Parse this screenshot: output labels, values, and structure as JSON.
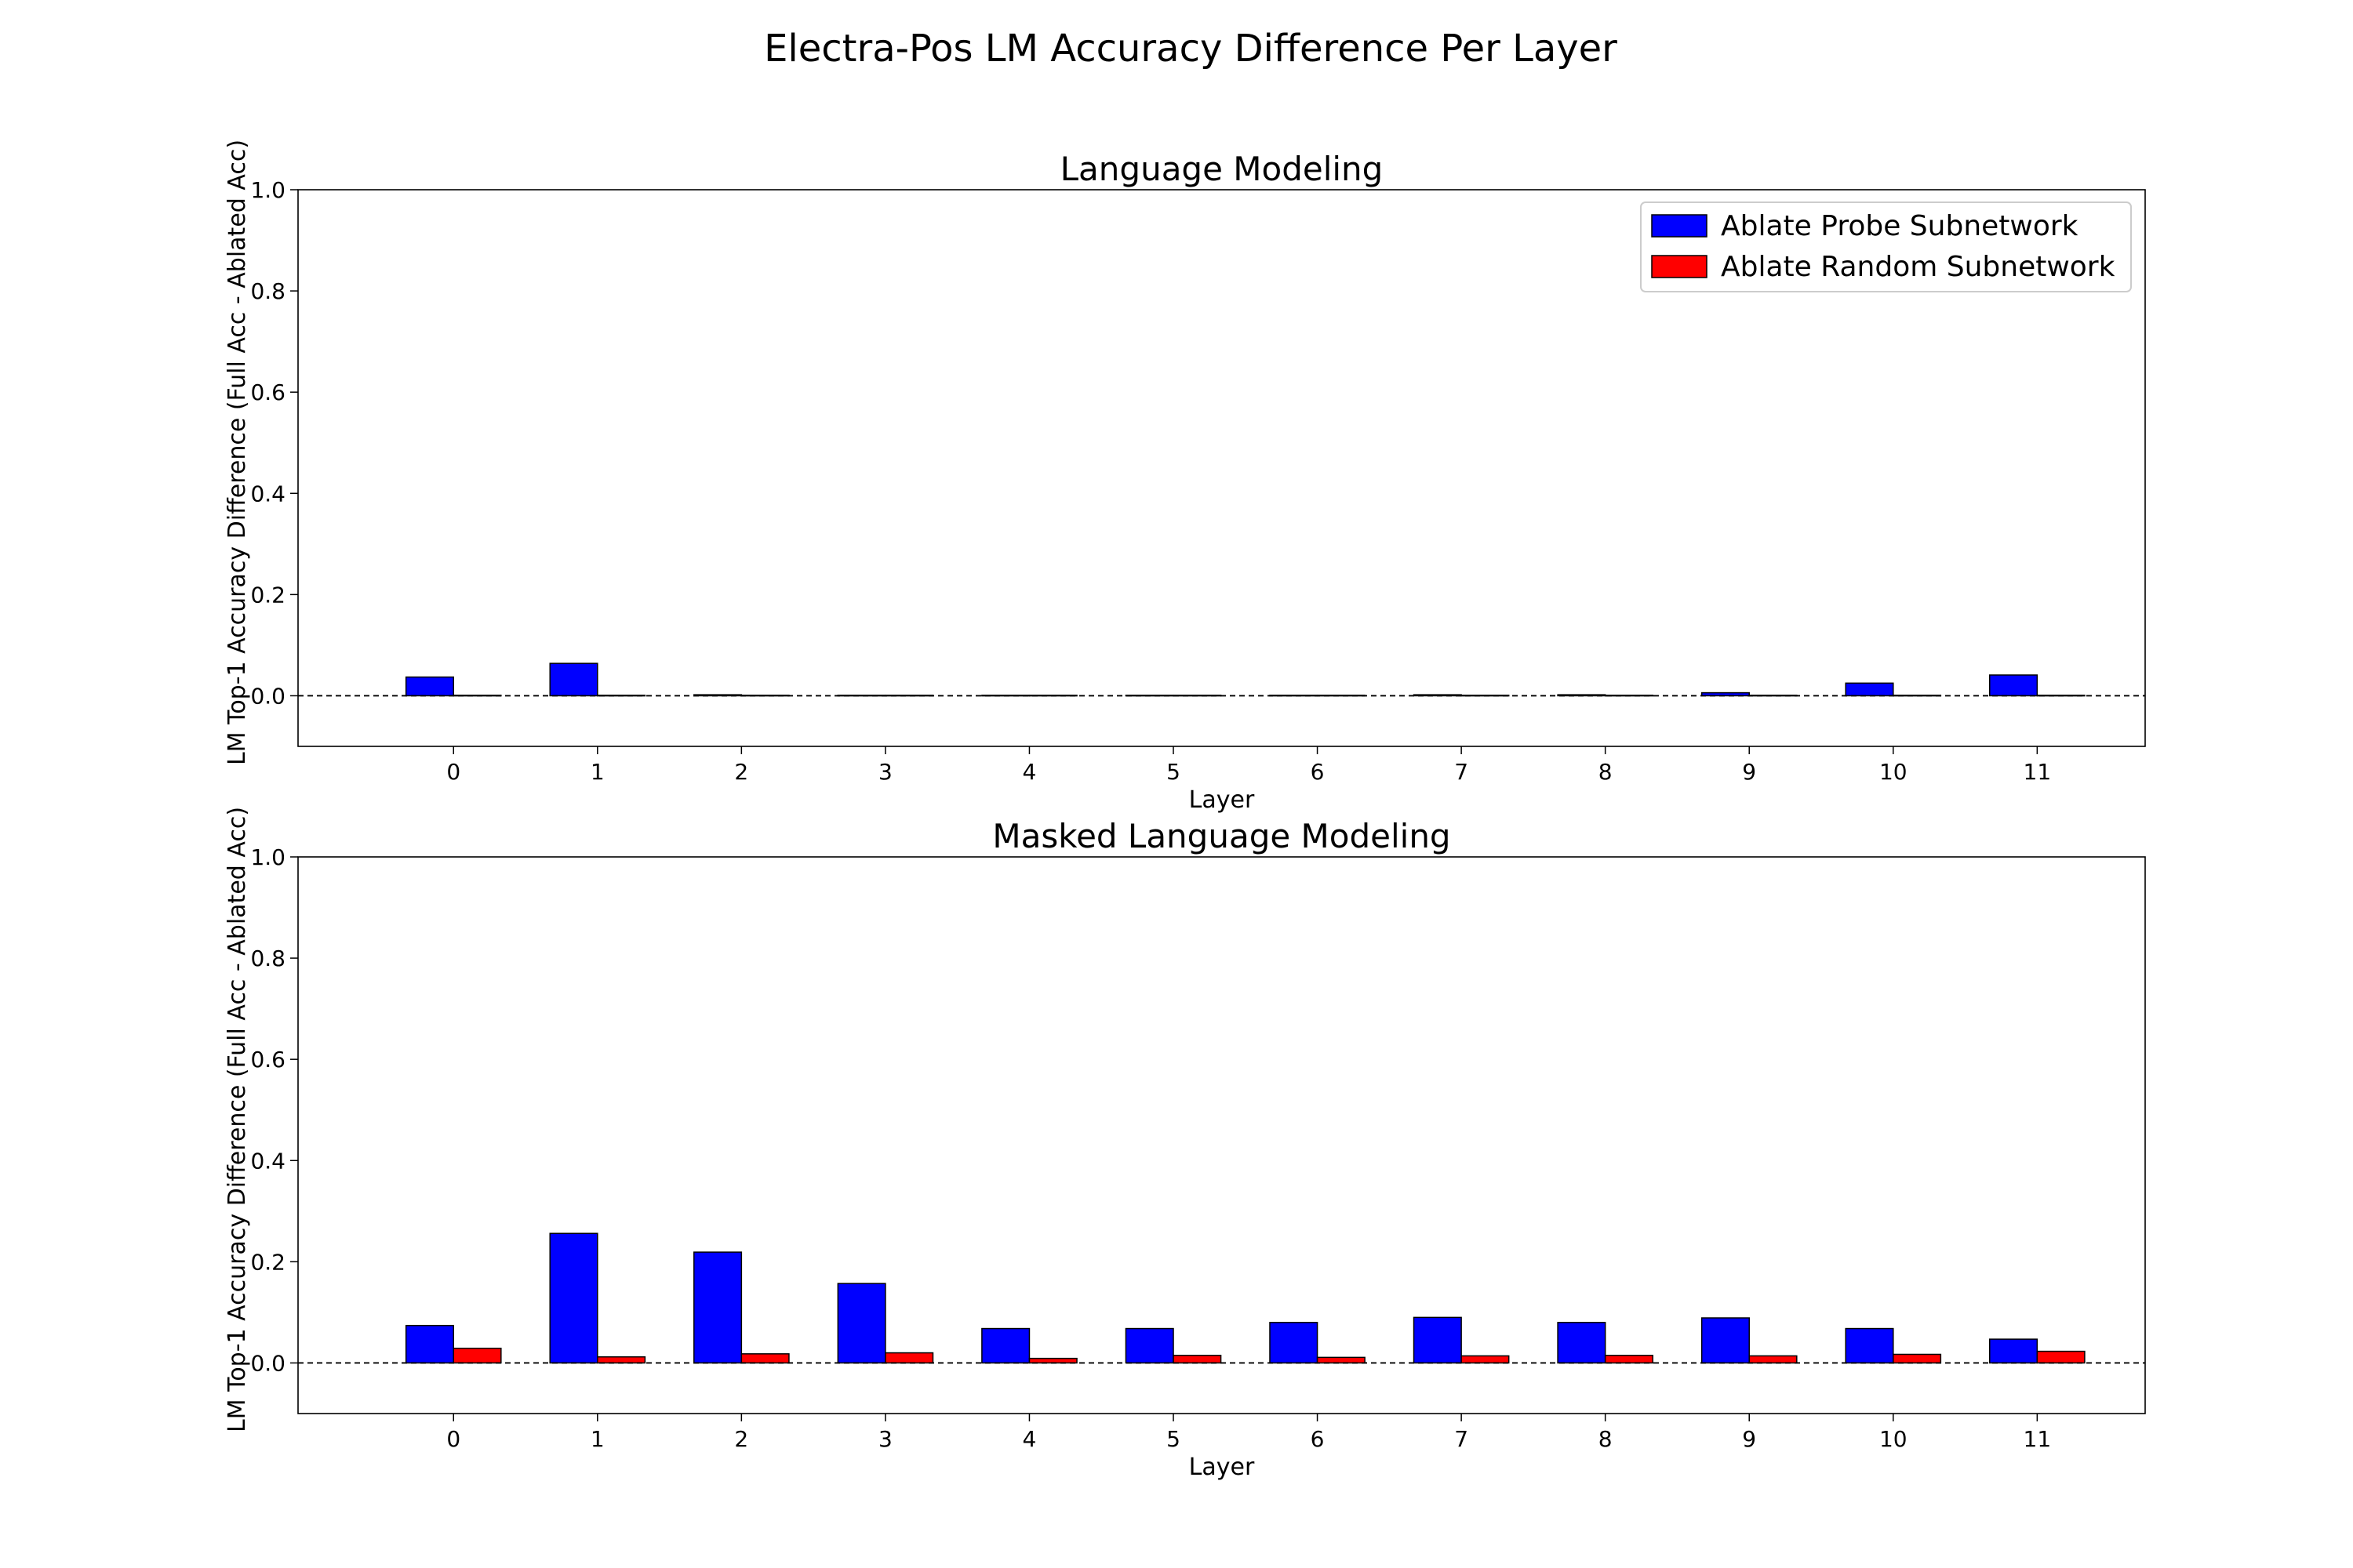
{
  "figure": {
    "suptitle": "Electra-Pos LM Accuracy Difference Per Layer"
  },
  "chart_data": [
    {
      "type": "bar",
      "title": "Language Modeling",
      "xlabel": "Layer",
      "ylabel": "LM Top-1 Accuracy Difference (Full Acc - Ablated Acc)",
      "ylim": [
        -0.1,
        1.0
      ],
      "yticks": [
        "0.0",
        "0.2",
        "0.4",
        "0.6",
        "0.8",
        "1.0"
      ],
      "categories": [
        "0",
        "1",
        "2",
        "3",
        "4",
        "5",
        "6",
        "7",
        "8",
        "9",
        "10",
        "11"
      ],
      "baseline": 0.0,
      "legend": "top-right",
      "grid": false,
      "series": [
        {
          "name": "Ablate Probe Subnetwork",
          "color": "#0000ff",
          "values": [
            0.037,
            0.064,
            0.002,
            0.001,
            0.001,
            0.001,
            0.001,
            0.002,
            0.002,
            0.006,
            0.025,
            0.041
          ]
        },
        {
          "name": "Ablate Random Subnetwork",
          "color": "#ff0000",
          "values": [
            0.001,
            0.001,
            0.001,
            0.001,
            0.001,
            0.001,
            0.001,
            0.001,
            0.001,
            0.001,
            0.001,
            0.001
          ]
        }
      ]
    },
    {
      "type": "bar",
      "title": "Masked Language Modeling",
      "xlabel": "Layer",
      "ylabel": "LM Top-1 Accuracy Difference (Full Acc - Ablated Acc)",
      "ylim": [
        -0.1,
        1.0
      ],
      "yticks": [
        "0.0",
        "0.2",
        "0.4",
        "0.6",
        "0.8",
        "1.0"
      ],
      "categories": [
        "0",
        "1",
        "2",
        "3",
        "4",
        "5",
        "6",
        "7",
        "8",
        "9",
        "10",
        "11"
      ],
      "baseline": 0.0,
      "legend": "none",
      "grid": false,
      "series": [
        {
          "name": "Ablate Probe Subnetwork",
          "color": "#0000ff",
          "values": [
            0.074,
            0.256,
            0.219,
            0.157,
            0.068,
            0.068,
            0.08,
            0.09,
            0.08,
            0.089,
            0.068,
            0.047
          ]
        },
        {
          "name": "Ablate Random Subnetwork",
          "color": "#ff0000",
          "values": [
            0.029,
            0.012,
            0.018,
            0.02,
            0.009,
            0.015,
            0.011,
            0.014,
            0.015,
            0.014,
            0.017,
            0.023
          ]
        }
      ]
    }
  ]
}
